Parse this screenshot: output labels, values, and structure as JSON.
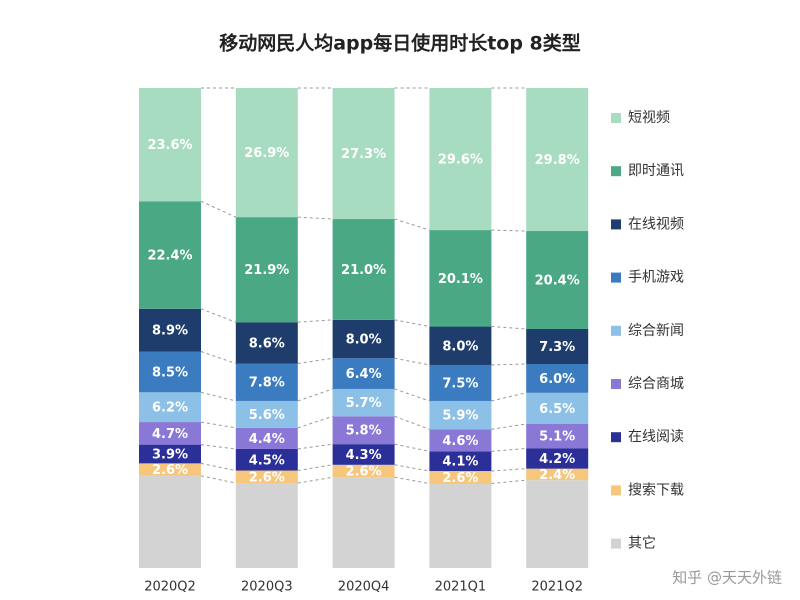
{
  "chart_data": {
    "type": "stacked-bar",
    "title": "移动网民人均app每日使用时长top 8类型",
    "categories": [
      "2020Q2",
      "2020Q3",
      "2020Q4",
      "2021Q1",
      "2021Q2"
    ],
    "series": [
      {
        "name": "短视频",
        "color": "#a8dcc0",
        "values": [
          23.6,
          26.9,
          27.3,
          29.6,
          29.8
        ],
        "value_labels": [
          "23.6%",
          "26.9%",
          "27.3%",
          "29.6%",
          "29.8%"
        ]
      },
      {
        "name": "即时通讯",
        "color": "#4aa884",
        "values": [
          22.4,
          21.9,
          21.0,
          20.1,
          20.4
        ],
        "value_labels": [
          "22.4%",
          "21.9%",
          "21.0%",
          "20.1%",
          "20.4%"
        ]
      },
      {
        "name": "在线视频",
        "color": "#1f3d6c",
        "values": [
          8.9,
          8.6,
          8.0,
          8.0,
          7.3
        ],
        "value_labels": [
          "8.9%",
          "8.6%",
          "8.0%",
          "8.0%",
          "7.3%"
        ]
      },
      {
        "name": "手机游戏",
        "color": "#3b7cc0",
        "values": [
          8.5,
          7.8,
          6.4,
          7.5,
          6.0
        ],
        "value_labels": [
          "8.5%",
          "7.8%",
          "6.4%",
          "7.5%",
          "6.0%"
        ]
      },
      {
        "name": "综合新闻",
        "color": "#8cc0e6",
        "values": [
          6.2,
          5.6,
          5.7,
          5.9,
          6.5
        ],
        "value_labels": [
          "6.2%",
          "5.6%",
          "5.7%",
          "5.9%",
          "6.5%"
        ]
      },
      {
        "name": "综合商城",
        "color": "#8a78d6",
        "values": [
          4.7,
          4.4,
          5.8,
          4.6,
          5.1
        ],
        "value_labels": [
          "4.7%",
          "4.4%",
          "5.8%",
          "4.6%",
          "5.1%"
        ]
      },
      {
        "name": "在线阅读",
        "color": "#2b2f98",
        "values": [
          3.9,
          4.5,
          4.3,
          4.1,
          4.2
        ],
        "value_labels": [
          "3.9%",
          "4.5%",
          "4.3%",
          "4.1%",
          "4.2%"
        ]
      },
      {
        "name": "搜索下载",
        "color": "#f5c67c",
        "values": [
          2.6,
          2.6,
          2.6,
          2.6,
          2.4
        ],
        "value_labels": [
          "2.6%",
          "2.6%",
          "2.6%",
          "2.6%",
          "2.4%"
        ]
      },
      {
        "name": "其它",
        "color": "#d3d3d3",
        "values": [
          19.2,
          17.7,
          18.9,
          17.6,
          18.3
        ]
      }
    ],
    "watermark": "知乎 @天天外链"
  }
}
